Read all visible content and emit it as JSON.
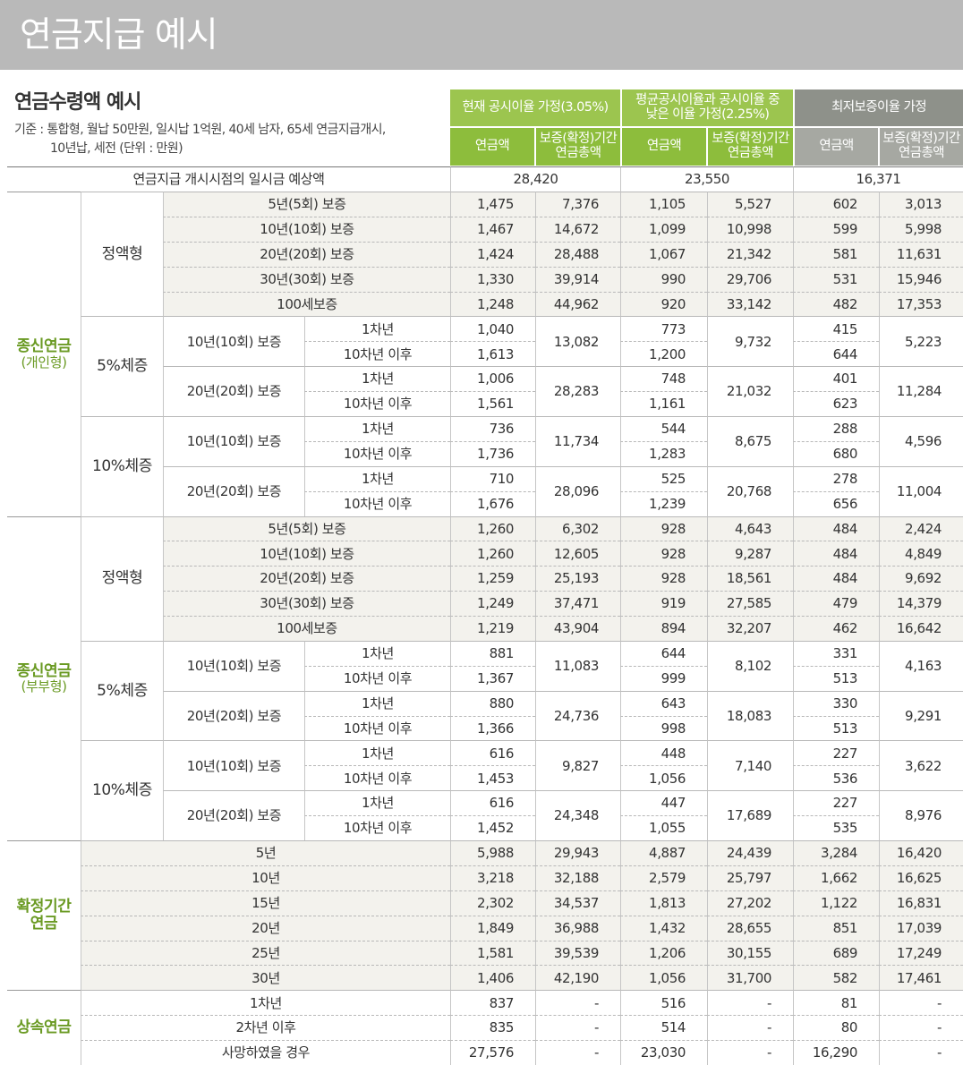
{
  "header": {
    "title": "연금지급 예시"
  },
  "section": {
    "title": "연금수령액 예시",
    "note_line1": "기준 : 통합형, 월납 50만원, 일시납 1억원, 40세 남자, 65세 연금지급개시,",
    "note_line2": "10년납, 세전 (단위 : 만원)"
  },
  "table": {
    "scenarios": [
      {
        "label": "현재 공시이율 가정(3.05%)",
        "columns": [
          "연금액",
          "보증(확정)기간 연금총액"
        ]
      },
      {
        "label": "평균공시이율과 공시이율 중 낮은 이율 가정(2.25%)",
        "columns": [
          "연금액",
          "보증(확정)기간 연금총액"
        ]
      },
      {
        "label": "최저보증이율 가정",
        "columns": [
          "연금액",
          "보증(확정)기간 연금총액"
        ]
      }
    ],
    "lump_sum": {
      "label": "연금지급 개시시점의 일시금 예상액",
      "values": [
        "28,420",
        "23,550",
        "16,371"
      ]
    },
    "groups": [
      {
        "title": "종신연금",
        "subtitle": "(개인형)",
        "kinds": [
          {
            "label": "정액형",
            "rows": [
              {
                "label": "5년(5회) 보증",
                "values": [
                  "1,475",
                  "7,376",
                  "1,105",
                  "5,527",
                  "602",
                  "3,013"
                ]
              },
              {
                "label": "10년(10회) 보증",
                "values": [
                  "1,467",
                  "14,672",
                  "1,099",
                  "10,998",
                  "599",
                  "5,998"
                ]
              },
              {
                "label": "20년(20회) 보증",
                "values": [
                  "1,424",
                  "28,488",
                  "1,067",
                  "21,342",
                  "581",
                  "11,631"
                ]
              },
              {
                "label": "30년(30회) 보증",
                "values": [
                  "1,330",
                  "39,914",
                  "990",
                  "29,706",
                  "531",
                  "15,946"
                ]
              },
              {
                "label": "100세보증",
                "values": [
                  "1,248",
                  "44,962",
                  "920",
                  "33,142",
                  "482",
                  "17,353"
                ]
              }
            ]
          },
          {
            "label": "5%체증",
            "plans": [
              {
                "label": "10년(10회) 보증",
                "periods": [
                  "1차년",
                  "10차년 이후"
                ],
                "amounts": [
                  [
                    "1,040",
                    "773",
                    "415"
                  ],
                  [
                    "1,613",
                    "1,200",
                    "644"
                  ]
                ],
                "totals": [
                  "13,082",
                  "9,732",
                  "5,223"
                ]
              },
              {
                "label": "20년(20회) 보증",
                "periods": [
                  "1차년",
                  "10차년 이후"
                ],
                "amounts": [
                  [
                    "1,006",
                    "748",
                    "401"
                  ],
                  [
                    "1,561",
                    "1,161",
                    "623"
                  ]
                ],
                "totals": [
                  "28,283",
                  "21,032",
                  "11,284"
                ]
              }
            ]
          },
          {
            "label": "10%체증",
            "plans": [
              {
                "label": "10년(10회) 보증",
                "periods": [
                  "1차년",
                  "10차년 이후"
                ],
                "amounts": [
                  [
                    "736",
                    "544",
                    "288"
                  ],
                  [
                    "1,736",
                    "1,283",
                    "680"
                  ]
                ],
                "totals": [
                  "11,734",
                  "8,675",
                  "4,596"
                ]
              },
              {
                "label": "20년(20회) 보증",
                "periods": [
                  "1차년",
                  "10차년 이후"
                ],
                "amounts": [
                  [
                    "710",
                    "525",
                    "278"
                  ],
                  [
                    "1,676",
                    "1,239",
                    "656"
                  ]
                ],
                "totals": [
                  "28,096",
                  "20,768",
                  "11,004"
                ]
              }
            ]
          }
        ]
      },
      {
        "title": "종신연금",
        "subtitle": "(부부형)",
        "kinds": [
          {
            "label": "정액형",
            "rows": [
              {
                "label": "5년(5회) 보증",
                "values": [
                  "1,260",
                  "6,302",
                  "928",
                  "4,643",
                  "484",
                  "2,424"
                ]
              },
              {
                "label": "10년(10회) 보증",
                "values": [
                  "1,260",
                  "12,605",
                  "928",
                  "9,287",
                  "484",
                  "4,849"
                ]
              },
              {
                "label": "20년(20회) 보증",
                "values": [
                  "1,259",
                  "25,193",
                  "928",
                  "18,561",
                  "484",
                  "9,692"
                ]
              },
              {
                "label": "30년(30회) 보증",
                "values": [
                  "1,249",
                  "37,471",
                  "919",
                  "27,585",
                  "479",
                  "14,379"
                ]
              },
              {
                "label": "100세보증",
                "values": [
                  "1,219",
                  "43,904",
                  "894",
                  "32,207",
                  "462",
                  "16,642"
                ]
              }
            ]
          },
          {
            "label": "5%체증",
            "plans": [
              {
                "label": "10년(10회) 보증",
                "periods": [
                  "1차년",
                  "10차년 이후"
                ],
                "amounts": [
                  [
                    "881",
                    "644",
                    "331"
                  ],
                  [
                    "1,367",
                    "999",
                    "513"
                  ]
                ],
                "totals": [
                  "11,083",
                  "8,102",
                  "4,163"
                ]
              },
              {
                "label": "20년(20회) 보증",
                "periods": [
                  "1차년",
                  "10차년 이후"
                ],
                "amounts": [
                  [
                    "880",
                    "643",
                    "330"
                  ],
                  [
                    "1,366",
                    "998",
                    "513"
                  ]
                ],
                "totals": [
                  "24,736",
                  "18,083",
                  "9,291"
                ]
              }
            ]
          },
          {
            "label": "10%체증",
            "plans": [
              {
                "label": "10년(10회) 보증",
                "periods": [
                  "1차년",
                  "10차년 이후"
                ],
                "amounts": [
                  [
                    "616",
                    "448",
                    "227"
                  ],
                  [
                    "1,453",
                    "1,056",
                    "536"
                  ]
                ],
                "totals": [
                  "9,827",
                  "7,140",
                  "3,622"
                ]
              },
              {
                "label": "20년(20회) 보증",
                "periods": [
                  "1차년",
                  "10차년 이후"
                ],
                "amounts": [
                  [
                    "616",
                    "447",
                    "227"
                  ],
                  [
                    "1,452",
                    "1,055",
                    "535"
                  ]
                ],
                "totals": [
                  "24,348",
                  "17,689",
                  "8,976"
                ]
              }
            ]
          }
        ]
      },
      {
        "title": "확정기간 연금",
        "rows": [
          {
            "label": "5년",
            "values": [
              "5,988",
              "29,943",
              "4,887",
              "24,439",
              "3,284",
              "16,420"
            ]
          },
          {
            "label": "10년",
            "values": [
              "3,218",
              "32,188",
              "2,579",
              "25,797",
              "1,662",
              "16,625"
            ]
          },
          {
            "label": "15년",
            "values": [
              "2,302",
              "34,537",
              "1,813",
              "27,202",
              "1,122",
              "16,831"
            ]
          },
          {
            "label": "20년",
            "values": [
              "1,849",
              "36,988",
              "1,432",
              "28,655",
              "851",
              "17,039"
            ]
          },
          {
            "label": "25년",
            "values": [
              "1,581",
              "39,539",
              "1,206",
              "30,155",
              "689",
              "17,249"
            ]
          },
          {
            "label": "30년",
            "values": [
              "1,406",
              "42,190",
              "1,056",
              "31,700",
              "582",
              "17,461"
            ]
          }
        ]
      },
      {
        "title": "상속연금",
        "rows": [
          {
            "label": "1차년",
            "values": [
              "837",
              "-",
              "516",
              "-",
              "81",
              "-"
            ]
          },
          {
            "label": "2차년 이후",
            "values": [
              "835",
              "-",
              "514",
              "-",
              "80",
              "-"
            ]
          },
          {
            "label": "사망하였을 경우",
            "values": [
              "27,576",
              "-",
              "23,030",
              "-",
              "16,290",
              "-"
            ]
          }
        ]
      }
    ]
  }
}
